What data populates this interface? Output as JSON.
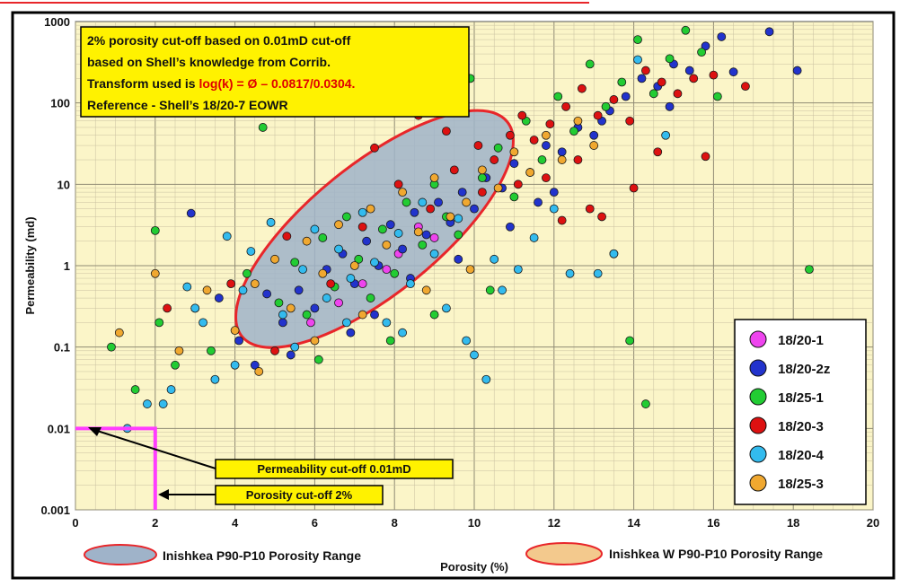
{
  "chart_data": {
    "type": "scatter",
    "title": "",
    "xlabel": "Porosity (%)",
    "ylabel": "Permeability (md)",
    "xlim": [
      0,
      20
    ],
    "ylim": [
      0.001,
      1000
    ],
    "y_scale": "log",
    "grid": true,
    "x_ticks": [
      "0",
      "2",
      "4",
      "6",
      "8",
      "10",
      "12",
      "14",
      "16",
      "18",
      "20"
    ],
    "y_ticks": [
      "0.001",
      "0.01",
      "0.1",
      "1",
      "10",
      "100",
      "1000"
    ],
    "annotation_box": {
      "line1": "2% porosity cut-off based on 0.01mD cut-off",
      "line2": "based on Shell’s knowledge from Corrib.",
      "line3_prefix": "Transform used is ",
      "line3_formula": "log(k) = Ø – 0.0817/0.0304.",
      "line4": "Reference - Shell’s 18/20-7 EOWR"
    },
    "callouts": {
      "permeability_cutoff": "Permeability cut-off 0.01mD",
      "porosity_cutoff": "Porosity cut-off 2%"
    },
    "cutoffs": {
      "porosity": 2,
      "permeability": 0.01
    },
    "ranges": [
      {
        "label": "Inishkea P90-P10 Porosity Range",
        "fill": "#9fb3c9",
        "center_x": 7.5,
        "center_logy": 0.45
      },
      {
        "label": "Inishkea W P90-P10 Porosity Range",
        "fill": "#f3c98d"
      }
    ],
    "legend_position": "bottom-right",
    "colors": {
      "plot_background": "#fbf5c8",
      "grid": "#c9c0a0",
      "annotation_fill": "#fff200",
      "formula": "#e00000",
      "cutoff_line": "#ff3cff",
      "range_outline": "#e8262a"
    },
    "series": [
      {
        "name": "18/20-1",
        "color": "#ee44ee",
        "points": [
          [
            7.2,
            0.6
          ],
          [
            8.1,
            1.4
          ],
          [
            6.6,
            0.35
          ],
          [
            9.0,
            2.2
          ],
          [
            7.8,
            0.9
          ],
          [
            5.9,
            0.2
          ],
          [
            8.6,
            3.0
          ]
        ]
      },
      {
        "name": "18/20-2z",
        "color": "#2233cc",
        "points": [
          [
            2.9,
            4.4
          ],
          [
            3.6,
            0.4
          ],
          [
            4.1,
            0.12
          ],
          [
            4.5,
            0.06
          ],
          [
            5.2,
            0.2
          ],
          [
            5.6,
            0.5
          ],
          [
            6.0,
            0.3
          ],
          [
            6.3,
            0.9
          ],
          [
            6.7,
            1.4
          ],
          [
            7.0,
            0.6
          ],
          [
            7.3,
            2.0
          ],
          [
            7.6,
            1.0
          ],
          [
            7.9,
            3.2
          ],
          [
            8.2,
            1.6
          ],
          [
            8.5,
            4.5
          ],
          [
            8.8,
            2.4
          ],
          [
            9.1,
            6.0
          ],
          [
            9.4,
            3.4
          ],
          [
            9.7,
            8.0
          ],
          [
            10.0,
            5.0
          ],
          [
            10.3,
            12
          ],
          [
            10.7,
            9
          ],
          [
            11.0,
            18
          ],
          [
            11.4,
            14
          ],
          [
            11.8,
            30
          ],
          [
            12.2,
            25
          ],
          [
            12.6,
            50
          ],
          [
            13.0,
            40
          ],
          [
            13.4,
            80
          ],
          [
            13.8,
            120
          ],
          [
            14.2,
            200
          ],
          [
            14.6,
            160
          ],
          [
            15.0,
            300
          ],
          [
            15.4,
            250
          ],
          [
            15.8,
            500
          ],
          [
            16.2,
            650
          ],
          [
            17.4,
            750
          ],
          [
            18.1,
            250
          ],
          [
            16.5,
            240
          ],
          [
            14.9,
            90
          ],
          [
            13.2,
            60
          ],
          [
            12.0,
            8
          ],
          [
            11.6,
            6
          ],
          [
            10.9,
            3
          ],
          [
            6.9,
            0.15
          ],
          [
            5.4,
            0.08
          ],
          [
            4.8,
            0.45
          ],
          [
            7.5,
            0.25
          ],
          [
            8.4,
            0.7
          ],
          [
            9.6,
            1.2
          ]
        ]
      },
      {
        "name": "18/25-1",
        "color": "#22cc33",
        "points": [
          [
            0.9,
            0.1
          ],
          [
            1.5,
            0.03
          ],
          [
            2.0,
            2.7
          ],
          [
            2.1,
            0.2
          ],
          [
            2.5,
            0.06
          ],
          [
            3.0,
            0.3
          ],
          [
            3.4,
            0.09
          ],
          [
            4.3,
            0.8
          ],
          [
            4.7,
            50
          ],
          [
            5.1,
            0.35
          ],
          [
            5.5,
            1.1
          ],
          [
            5.8,
            0.25
          ],
          [
            6.2,
            2.2
          ],
          [
            6.5,
            0.55
          ],
          [
            6.8,
            4.0
          ],
          [
            7.1,
            1.2
          ],
          [
            7.4,
            0.4
          ],
          [
            7.7,
            2.8
          ],
          [
            8.0,
            0.8
          ],
          [
            8.3,
            6.0
          ],
          [
            8.7,
            1.8
          ],
          [
            9.0,
            10
          ],
          [
            9.3,
            4.0
          ],
          [
            9.6,
            2.4
          ],
          [
            9.9,
            200
          ],
          [
            10.2,
            12
          ],
          [
            10.6,
            28
          ],
          [
            11.0,
            7
          ],
          [
            11.3,
            60
          ],
          [
            11.7,
            20
          ],
          [
            12.1,
            120
          ],
          [
            12.5,
            45
          ],
          [
            12.9,
            300
          ],
          [
            13.3,
            90
          ],
          [
            13.7,
            180
          ],
          [
            14.1,
            600
          ],
          [
            14.5,
            130
          ],
          [
            14.9,
            350
          ],
          [
            15.3,
            780
          ],
          [
            15.7,
            420
          ],
          [
            16.1,
            120
          ],
          [
            18.4,
            0.9
          ],
          [
            13.9,
            0.12
          ],
          [
            14.3,
            0.02
          ],
          [
            10.4,
            0.5
          ],
          [
            9.0,
            0.25
          ],
          [
            7.9,
            0.12
          ],
          [
            6.1,
            0.07
          ]
        ]
      },
      {
        "name": "18/20-3",
        "color": "#dd1111",
        "points": [
          [
            2.3,
            0.3
          ],
          [
            3.9,
            0.6
          ],
          [
            5.0,
            0.09
          ],
          [
            5.3,
            2.3
          ],
          [
            6.4,
            0.6
          ],
          [
            7.2,
            3.0
          ],
          [
            8.1,
            10
          ],
          [
            8.9,
            5
          ],
          [
            9.5,
            15
          ],
          [
            10.1,
            30
          ],
          [
            10.5,
            20
          ],
          [
            10.9,
            40
          ],
          [
            11.2,
            70
          ],
          [
            11.5,
            35
          ],
          [
            11.9,
            55
          ],
          [
            12.3,
            90
          ],
          [
            12.7,
            150
          ],
          [
            13.1,
            70
          ],
          [
            13.5,
            110
          ],
          [
            13.9,
            60
          ],
          [
            14.3,
            250
          ],
          [
            14.7,
            180
          ],
          [
            15.1,
            130
          ],
          [
            15.5,
            200
          ],
          [
            16.0,
            220
          ],
          [
            16.8,
            160
          ],
          [
            12.9,
            5
          ],
          [
            14.0,
            9
          ],
          [
            13.5,
            1.4
          ],
          [
            12.2,
            3.6
          ],
          [
            11.1,
            10
          ],
          [
            10.2,
            8
          ],
          [
            9.3,
            45
          ],
          [
            8.6,
            70
          ],
          [
            7.5,
            28
          ],
          [
            11.8,
            12
          ],
          [
            12.6,
            20
          ],
          [
            13.2,
            4
          ],
          [
            14.6,
            25
          ],
          [
            15.8,
            22
          ]
        ]
      },
      {
        "name": "18/20-4",
        "color": "#33bbee",
        "points": [
          [
            1.3,
            0.01
          ],
          [
            1.8,
            0.02
          ],
          [
            2.4,
            0.03
          ],
          [
            2.8,
            0.55
          ],
          [
            3.2,
            0.2
          ],
          [
            3.5,
            0.04
          ],
          [
            3.8,
            2.3
          ],
          [
            4.0,
            0.06
          ],
          [
            4.4,
            1.5
          ],
          [
            4.9,
            3.4
          ],
          [
            5.2,
            0.25
          ],
          [
            5.7,
            0.9
          ],
          [
            6.0,
            2.8
          ],
          [
            6.3,
            0.4
          ],
          [
            6.6,
            1.6
          ],
          [
            6.9,
            0.7
          ],
          [
            7.2,
            4.5
          ],
          [
            7.5,
            1.1
          ],
          [
            7.8,
            0.2
          ],
          [
            8.1,
            2.5
          ],
          [
            8.4,
            0.6
          ],
          [
            8.7,
            6.0
          ],
          [
            9.0,
            1.4
          ],
          [
            9.3,
            0.3
          ],
          [
            9.6,
            3.8
          ],
          [
            10.0,
            0.08
          ],
          [
            10.3,
            0.04
          ],
          [
            10.7,
            0.5
          ],
          [
            11.1,
            0.9
          ],
          [
            11.5,
            2.2
          ],
          [
            12.0,
            5.0
          ],
          [
            12.4,
            0.8
          ],
          [
            13.1,
            0.8
          ],
          [
            13.5,
            1.4
          ],
          [
            14.1,
            340
          ],
          [
            14.8,
            40
          ],
          [
            10.5,
            1.2
          ],
          [
            9.8,
            0.12
          ],
          [
            3.0,
            0.3
          ],
          [
            2.2,
            0.02
          ],
          [
            4.2,
            0.5
          ],
          [
            5.5,
            0.1
          ],
          [
            6.8,
            0.2
          ],
          [
            8.2,
            0.15
          ]
        ]
      },
      {
        "name": "18/25-3",
        "color": "#f0a830",
        "points": [
          [
            1.1,
            0.15
          ],
          [
            2.0,
            0.8
          ],
          [
            2.6,
            0.09
          ],
          [
            3.3,
            0.5
          ],
          [
            4.0,
            0.16
          ],
          [
            4.5,
            0.6
          ],
          [
            5.0,
            1.2
          ],
          [
            5.4,
            0.3
          ],
          [
            5.8,
            2.0
          ],
          [
            6.2,
            0.8
          ],
          [
            6.6,
            3.2
          ],
          [
            7.0,
            1.0
          ],
          [
            7.4,
            5.0
          ],
          [
            7.8,
            1.8
          ],
          [
            8.2,
            8.0
          ],
          [
            8.6,
            2.6
          ],
          [
            9.0,
            12
          ],
          [
            9.4,
            4.0
          ],
          [
            9.8,
            6.0
          ],
          [
            10.2,
            15
          ],
          [
            10.6,
            9
          ],
          [
            11.0,
            25
          ],
          [
            11.4,
            14
          ],
          [
            11.8,
            40
          ],
          [
            12.2,
            20
          ],
          [
            12.6,
            60
          ],
          [
            13.0,
            30
          ],
          [
            6.0,
            0.12
          ],
          [
            7.2,
            0.25
          ],
          [
            8.8,
            0.5
          ],
          [
            9.9,
            0.9
          ],
          [
            4.6,
            0.05
          ]
        ]
      }
    ]
  }
}
